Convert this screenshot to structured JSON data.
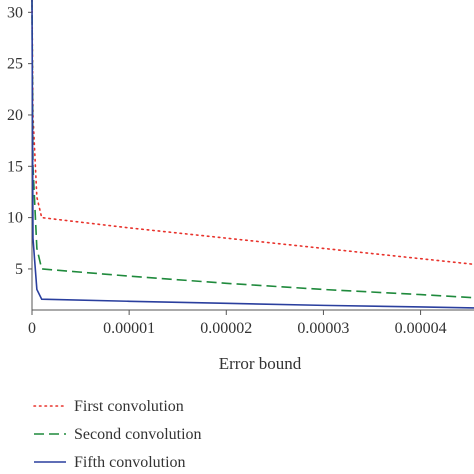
{
  "chart_data": {
    "type": "line",
    "title": "",
    "xlabel": "Error bound",
    "ylabel": "",
    "xlim": [
      0,
      4.55e-05
    ],
    "ylim": [
      1,
      31.2
    ],
    "xticks": [
      0,
      1e-05,
      2e-05,
      3e-05,
      4e-05
    ],
    "xtick_labels": [
      "0",
      "0.00001",
      "0.00002",
      "0.00003",
      "0.00004"
    ],
    "yticks": [
      5,
      10,
      15,
      20,
      25,
      30
    ],
    "ytick_labels": [
      "5",
      "10",
      "15",
      "20",
      "25",
      "30"
    ],
    "grid": false,
    "legend_position": "bottom",
    "series": [
      {
        "name": "First convolution",
        "color": "#e8322b",
        "style": "dotted",
        "x": [
          0,
          1e-07,
          5e-07,
          1e-06,
          1e-05,
          2e-05,
          3e-05,
          4e-05,
          4.55e-05
        ],
        "y": [
          31.2,
          20,
          12,
          10,
          9.0,
          8.0,
          7.0,
          6.0,
          5.45
        ]
      },
      {
        "name": "Second convolution",
        "color": "#1f8a3c",
        "style": "dashed",
        "x": [
          0,
          1e-07,
          5e-07,
          1e-06,
          1e-05,
          2e-05,
          3e-05,
          4e-05,
          4.55e-05
        ],
        "y": [
          31.2,
          15,
          7,
          5.0,
          4.3,
          3.6,
          3.0,
          2.5,
          2.2
        ]
      },
      {
        "name": "Fifth convolution",
        "color": "#2a3f9e",
        "style": "solid",
        "x": [
          0,
          1e-07,
          5e-07,
          1e-06,
          1e-05,
          2e-05,
          3e-05,
          4e-05,
          4.55e-05
        ],
        "y": [
          31.2,
          8,
          3,
          2.05,
          1.85,
          1.65,
          1.45,
          1.3,
          1.2
        ]
      }
    ]
  }
}
